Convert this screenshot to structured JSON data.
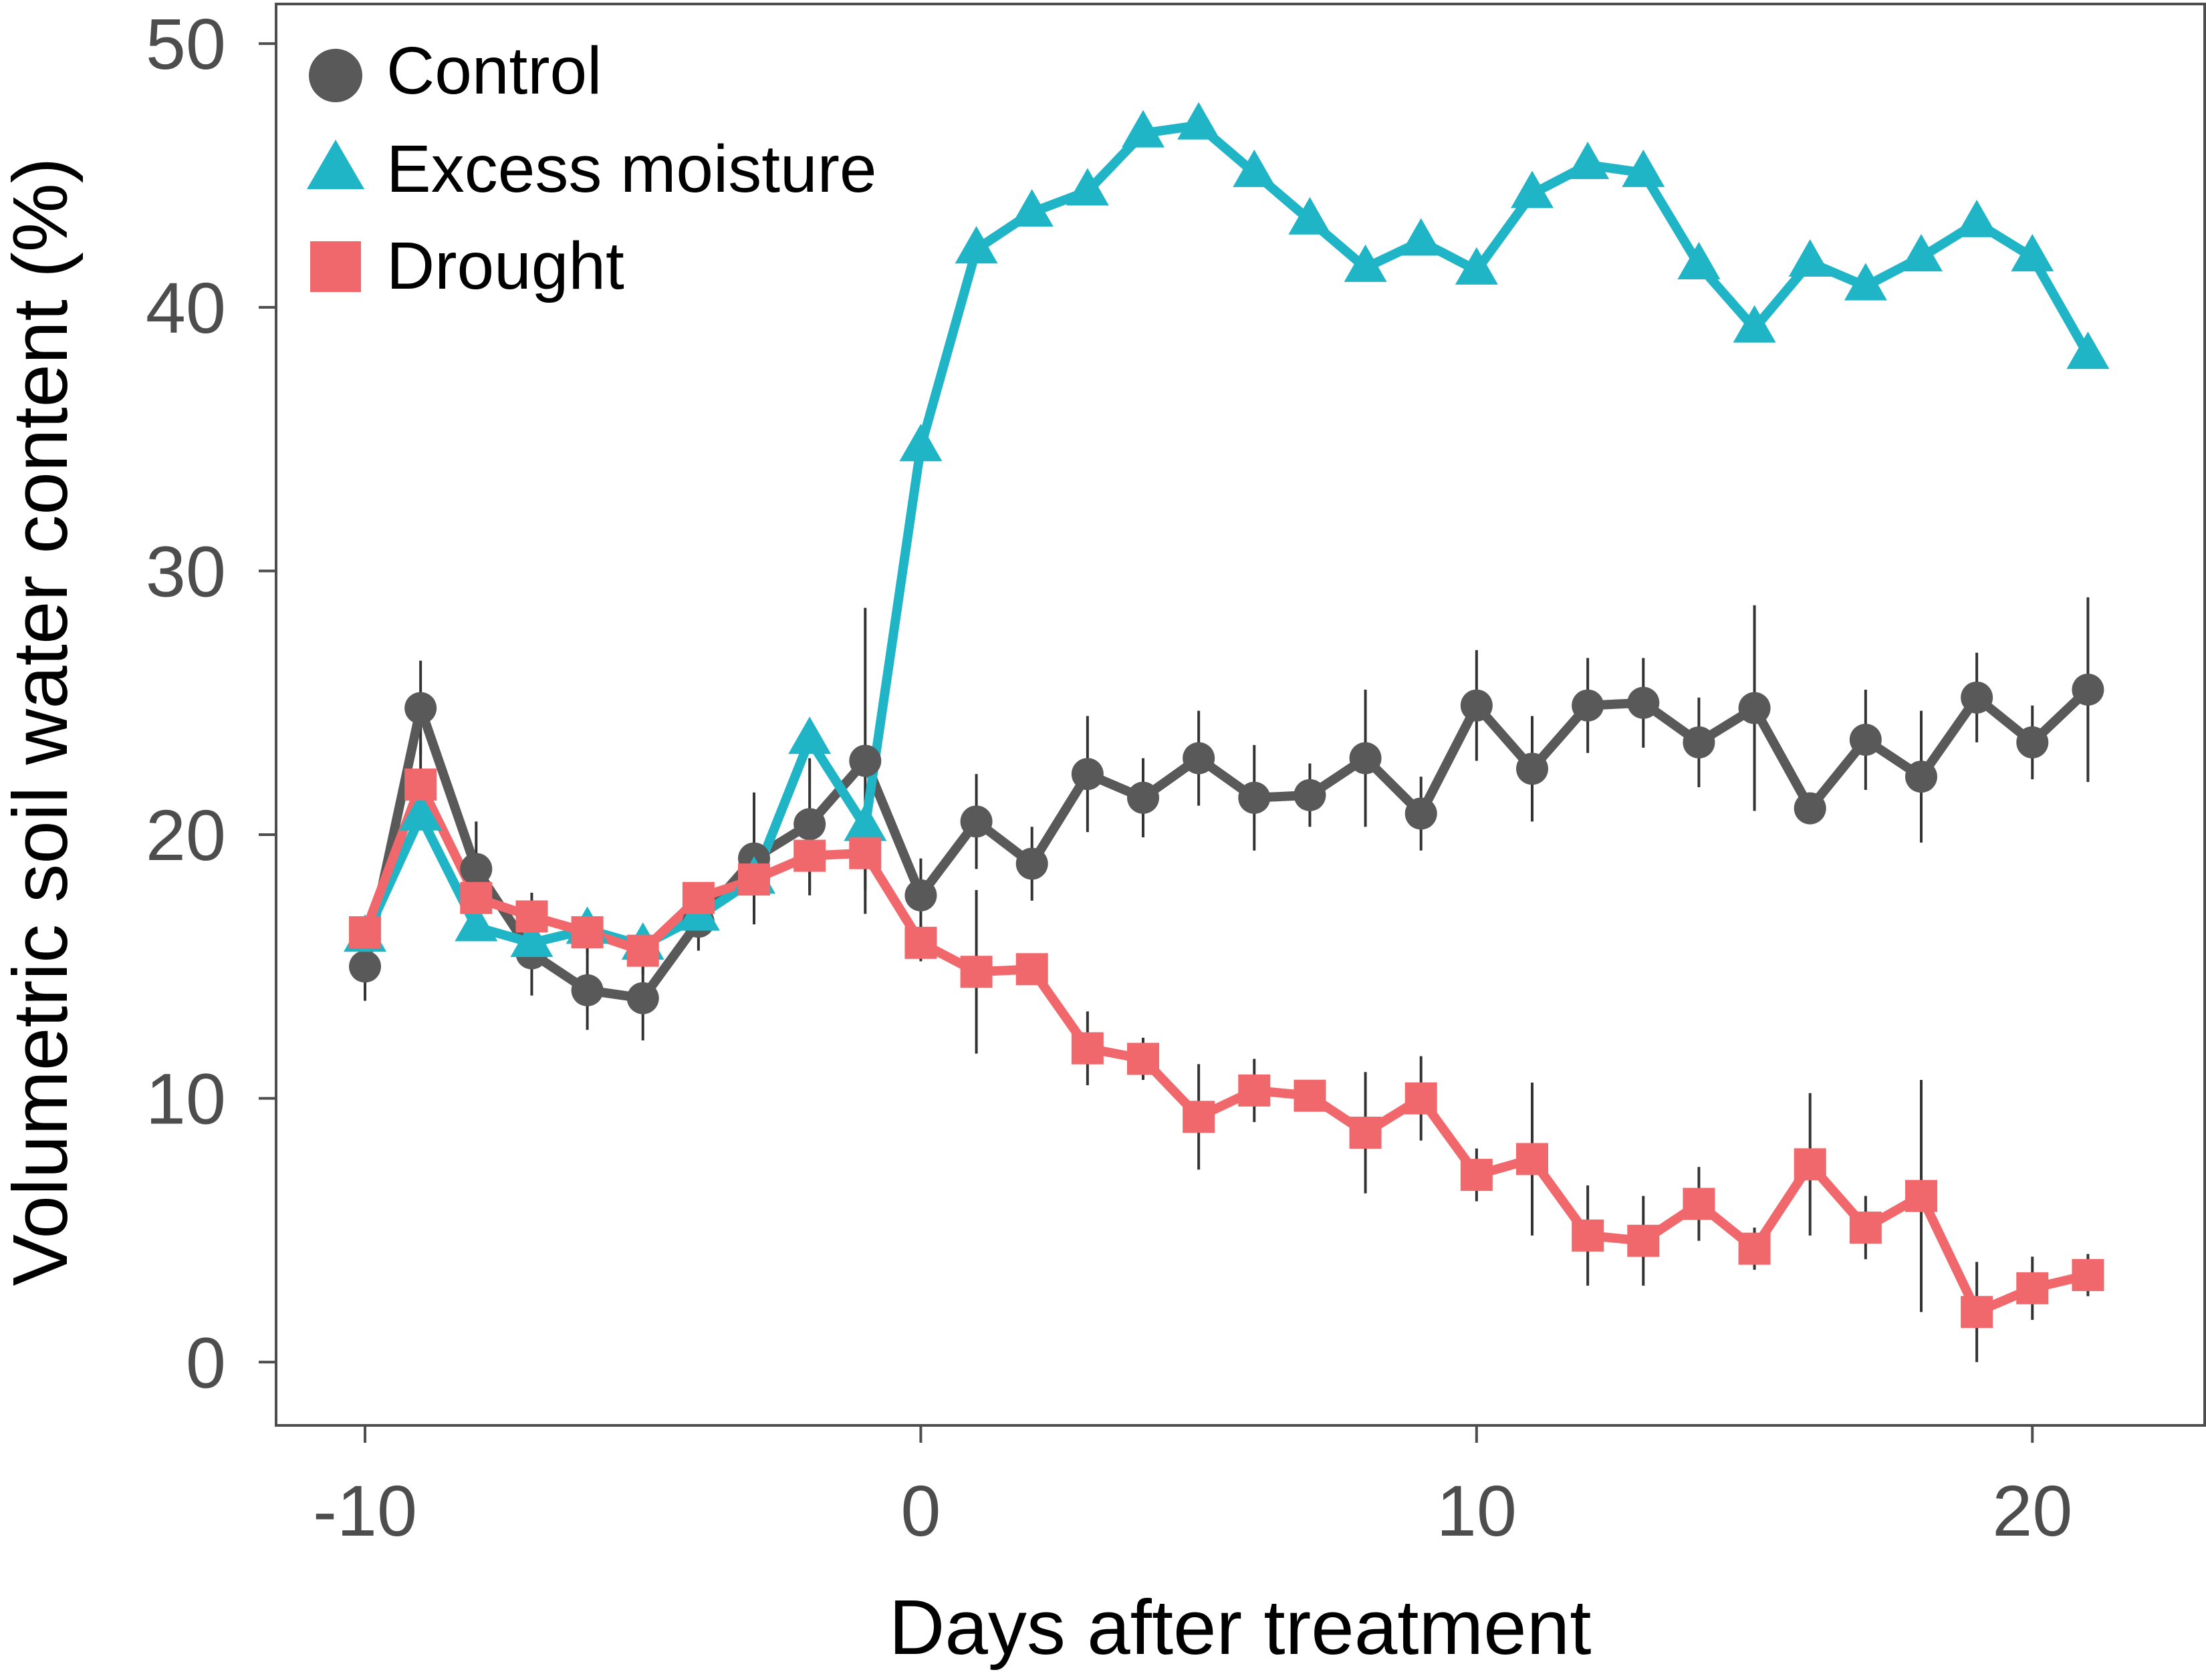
{
  "chart_data": {
    "type": "line",
    "title": "",
    "xlabel": "Days after treatment",
    "ylabel": "Volumetric soil water content (%)",
    "xlim": [
      -11.6,
      23.1
    ],
    "ylim": [
      -2.4,
      51.5
    ],
    "xticks": [
      -10,
      0,
      10,
      20
    ],
    "xtick_labels": [
      "-10",
      "0",
      "10",
      "20"
    ],
    "yticks": [
      0,
      10,
      20,
      30,
      40,
      50
    ],
    "ytick_labels": [
      "0",
      "10",
      "20",
      "30",
      "40",
      "50"
    ],
    "grid": false,
    "legend_position": "top-left",
    "x": [
      -10,
      -9,
      -8,
      -7,
      -6,
      -5,
      -4,
      -3,
      -2,
      -1,
      0,
      1,
      2,
      3,
      4,
      5,
      6,
      7,
      8,
      9,
      10,
      11,
      12,
      13,
      14,
      15,
      16,
      17,
      18,
      19,
      20,
      21
    ],
    "series": [
      {
        "name": "Control",
        "marker": "circle",
        "color": "#595959",
        "values": [
          15.0,
          24.8,
          18.7,
          15.5,
          14.1,
          13.8,
          16.7,
          19.1,
          20.4,
          22.8,
          17.7,
          20.5,
          18.9,
          22.3,
          21.4,
          22.9,
          21.4,
          21.5,
          22.9,
          20.8,
          24.9,
          22.5,
          24.9,
          25.0,
          23.5,
          24.8,
          21.0,
          23.6,
          22.2,
          25.2,
          23.5,
          25.5
        ],
        "errors": [
          1.3,
          1.8,
          1.8,
          1.6,
          1.5,
          1.6,
          1.1,
          2.5,
          2.5,
          5.8,
          1.4,
          1.8,
          1.4,
          2.2,
          1.5,
          1.8,
          2.0,
          1.2,
          2.6,
          1.4,
          2.1,
          2.0,
          1.8,
          1.7,
          1.7,
          3.9,
          0.4,
          1.9,
          2.5,
          1.7,
          1.4,
          3.5
        ]
      },
      {
        "name": "Excess moisture",
        "marker": "triangle",
        "color": "#1fb5c6",
        "values": [
          16.1,
          20.7,
          16.5,
          15.9,
          16.4,
          15.8,
          16.9,
          18.3,
          23.6,
          20.3,
          34.7,
          42.2,
          43.6,
          44.4,
          46.6,
          46.9,
          45.1,
          43.3,
          41.5,
          42.5,
          41.4,
          44.3,
          45.4,
          45.1,
          41.6,
          39.2,
          41.7,
          40.8,
          41.9,
          43.2,
          41.9,
          38.2
        ]
      },
      {
        "name": "Drought",
        "marker": "square",
        "color": "#f0686c",
        "values": [
          16.3,
          21.9,
          17.6,
          16.9,
          16.3,
          15.6,
          17.6,
          18.3,
          19.2,
          19.3,
          15.9,
          14.8,
          14.9,
          11.9,
          11.5,
          9.3,
          10.3,
          10.1,
          8.7,
          10.0,
          7.1,
          7.7,
          4.8,
          4.6,
          6.0,
          4.3,
          7.5,
          5.1,
          6.3,
          1.9,
          2.8,
          3.3
        ],
        "errors": [
          0.6,
          1.6,
          1.0,
          0.9,
          0.8,
          0.9,
          0.6,
          1.3,
          1.5,
          1.4,
          0.7,
          3.1,
          0.6,
          1.4,
          0.8,
          2.0,
          1.2,
          0.6,
          2.3,
          1.6,
          1.0,
          2.9,
          1.9,
          1.7,
          1.4,
          0.8,
          2.7,
          1.2,
          4.4,
          1.9,
          1.2,
          0.8
        ]
      }
    ]
  }
}
